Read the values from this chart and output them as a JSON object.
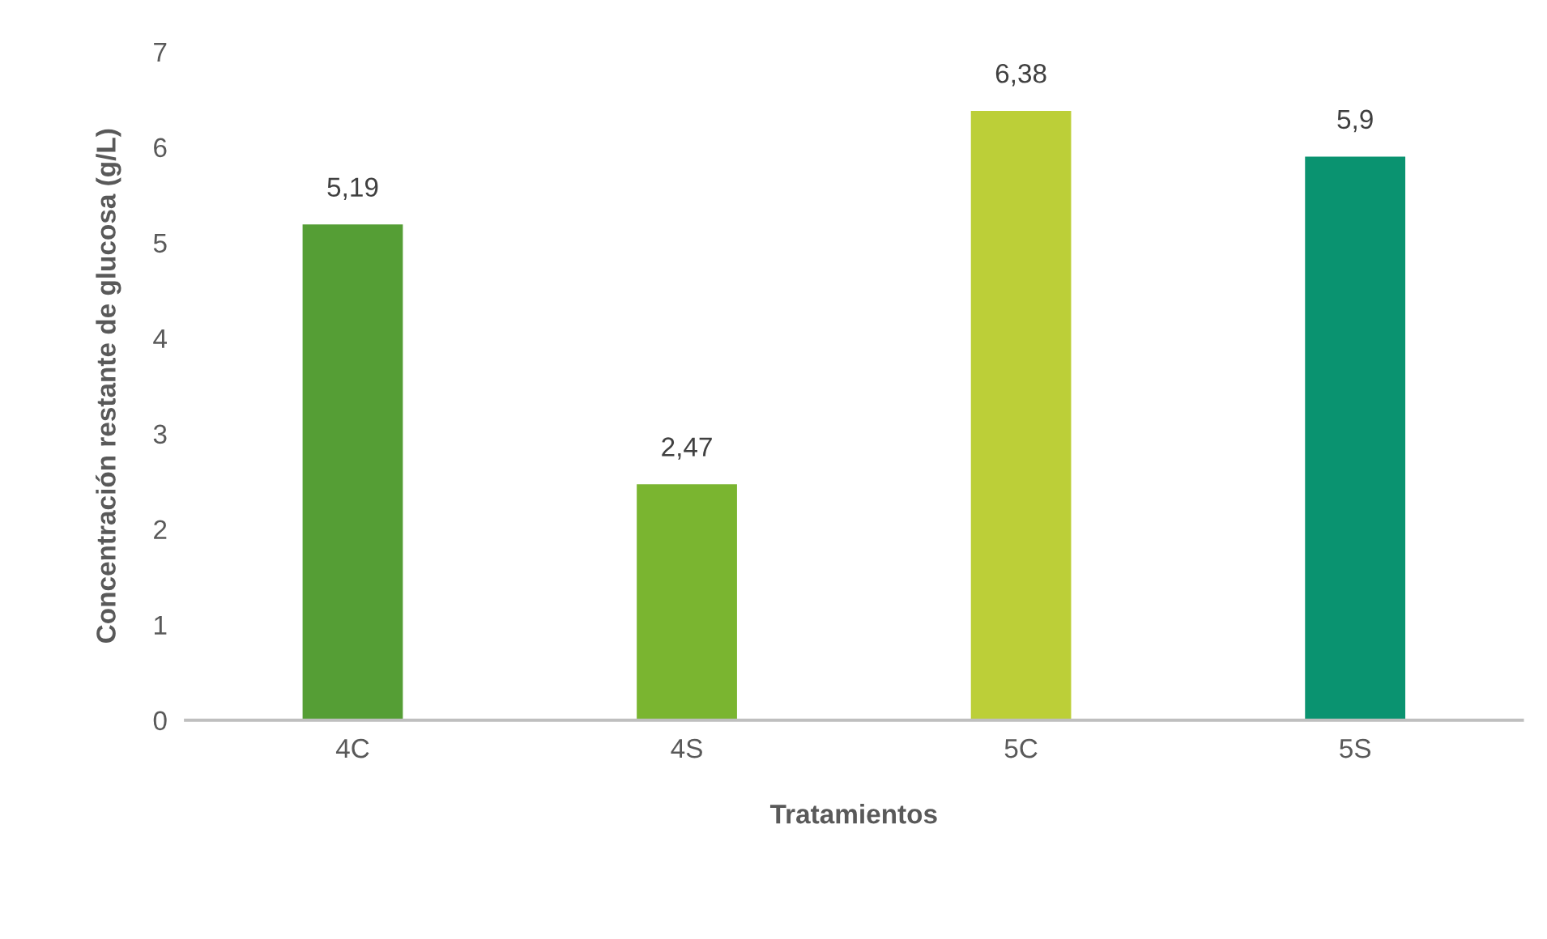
{
  "chart_data": {
    "type": "bar",
    "xlabel": "Tratamientos",
    "ylabel": "Concentración restante de glucosa (g/L)",
    "categories": [
      "4C",
      "4S",
      "5C",
      "5S"
    ],
    "values": [
      5.19,
      2.47,
      6.38,
      5.9
    ],
    "colors": [
      "#559e35",
      "#7ab530",
      "#bccf38",
      "#0a9370"
    ],
    "value_labels": [
      "5,19",
      "2,47",
      "6,38",
      "5,9"
    ],
    "ylim": [
      0,
      7
    ],
    "yticks": [
      0,
      1,
      2,
      3,
      4,
      5,
      6,
      7
    ],
    "grid": false,
    "legend": false
  }
}
